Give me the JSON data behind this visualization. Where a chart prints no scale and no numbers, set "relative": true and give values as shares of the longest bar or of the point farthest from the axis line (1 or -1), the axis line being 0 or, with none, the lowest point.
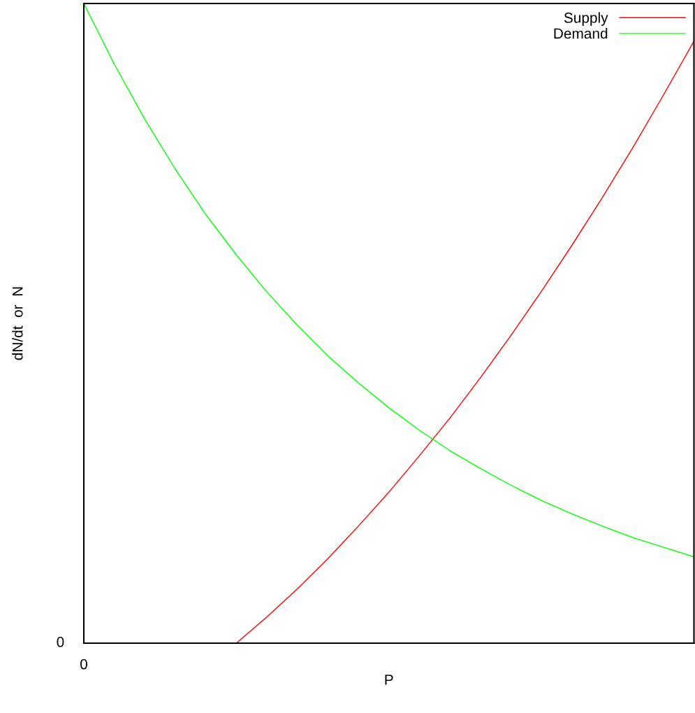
{
  "chart_data": {
    "type": "line",
    "relative": true,
    "xlabel": "P",
    "ylabel": "dN/dt  or  N",
    "categories": [
      null,
      null,
      null,
      null,
      null,
      null,
      null,
      null,
      null,
      null,
      null,
      null,
      null,
      null,
      null,
      null,
      null,
      null,
      null,
      null,
      null
    ],
    "series": [
      {
        "name": "Supply",
        "color": "#ff0000",
        "values": [
          null,
          null,
          null,
          null,
          null,
          0,
          0.041,
          0.085,
          0.132,
          0.183,
          0.236,
          0.293,
          0.352,
          0.415,
          0.481,
          0.55,
          0.622,
          0.697,
          0.775,
          0.857,
          0.941
        ]
      },
      {
        "name": "Demand",
        "color": "#00ff00",
        "values": [
          1,
          0.905,
          0.819,
          0.741,
          0.67,
          0.607,
          0.549,
          0.497,
          0.449,
          0.407,
          0.368,
          0.333,
          0.301,
          0.273,
          0.247,
          0.223,
          0.202,
          0.183,
          0.165,
          0.15,
          0.135
        ]
      }
    ],
    "annotations": [
      "0",
      "0"
    ],
    "legend": "top right",
    "marker": "none",
    "line_style": "solid"
  }
}
